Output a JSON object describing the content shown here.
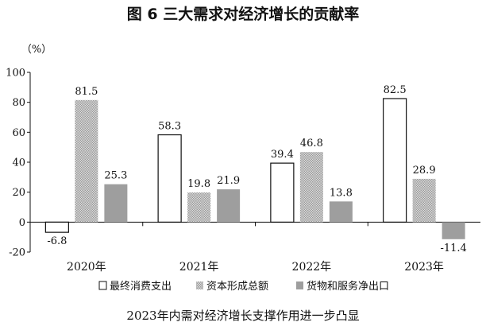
{
  "chart_data": {
    "type": "bar",
    "title": "图 6    三大需求对经济增长的贡献率",
    "unit_label": "（%）",
    "caption": "2023年内需对经济增长支撑作用进一步凸显",
    "categories": [
      "2020年",
      "2021年",
      "2022年",
      "2023年"
    ],
    "series": [
      {
        "name": "最终消费支出",
        "values": [
          -6.8,
          58.3,
          39.4,
          82.5
        ],
        "value_labels": [
          "-6.8",
          "58.3",
          "39.4",
          "82.5"
        ],
        "fill": "#ffffff",
        "pattern": "solid-outline"
      },
      {
        "name": "资本形成总额",
        "values": [
          81.5,
          19.8,
          46.8,
          28.9
        ],
        "value_labels": [
          "81.5",
          "19.8",
          "46.8",
          "28.9"
        ],
        "fill": "#c8c8c8",
        "pattern": "checker"
      },
      {
        "name": "货物和服务净出口",
        "values": [
          25.3,
          21.9,
          13.8,
          -11.4
        ],
        "value_labels": [
          "25.3",
          "21.9",
          "13.8",
          "-11.4"
        ],
        "fill": "#9e9e9e",
        "pattern": "solid"
      }
    ],
    "yticks": [
      "-20",
      "0",
      "20",
      "40",
      "60",
      "80",
      "100"
    ],
    "ylim": [
      -20,
      100
    ],
    "legend_position": "bottom",
    "grid": false
  }
}
